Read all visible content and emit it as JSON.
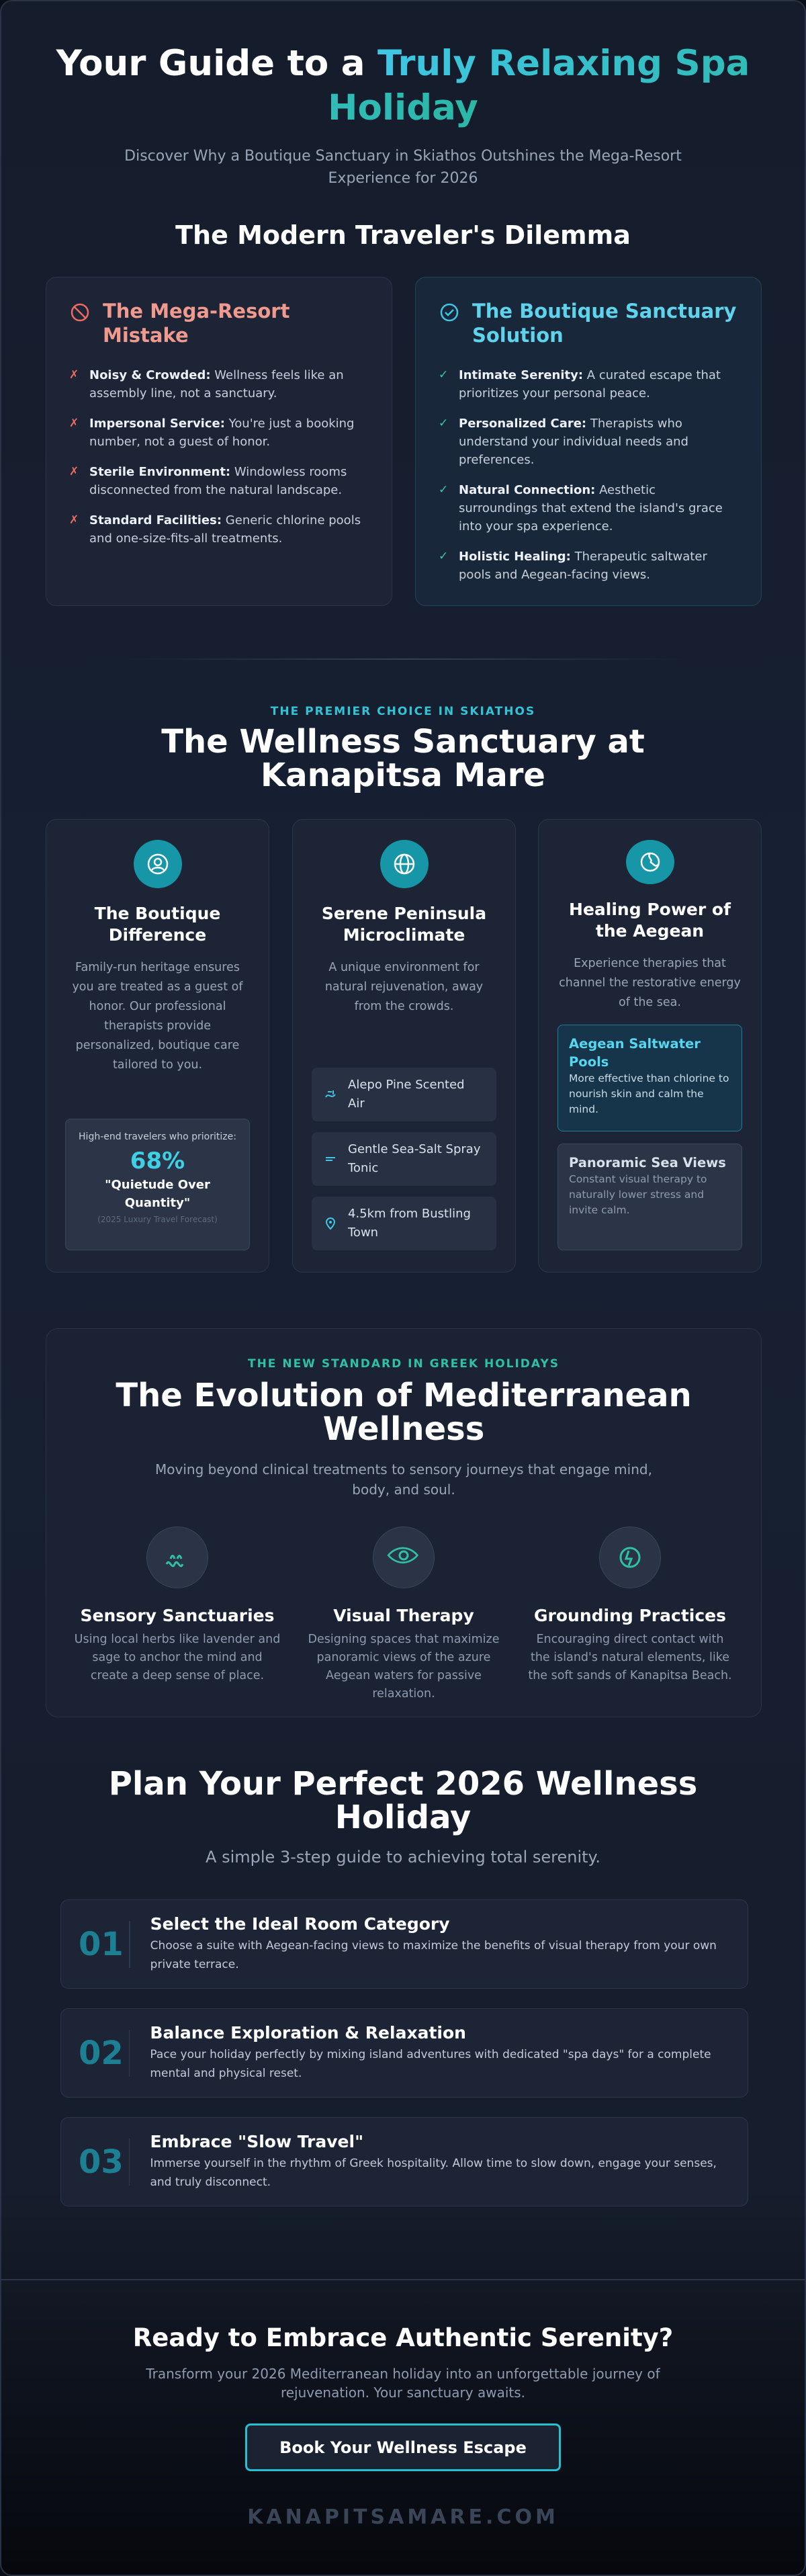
{
  "header": {
    "title_lead": "Your Guide to a",
    "title_highlight": "Truly Relaxing Spa Holiday",
    "subtitle": "Discover Why a Boutique Sanctuary in Skiathos Outshines the Mega-Resort Experience for 2026"
  },
  "dilemma": {
    "title": "The Modern Traveler's Dilemma",
    "cards": [
      {
        "title": "The Mega-Resort Mistake",
        "items": [
          {
            "label": "Noisy & Crowded:",
            "text": "Wellness feels like an assembly line, not a sanctuary."
          },
          {
            "label": "Impersonal Service:",
            "text": "You're just a booking number, not a guest of honor."
          },
          {
            "label": "Sterile Environment:",
            "text": "Windowless rooms disconnected from the natural landscape."
          },
          {
            "label": "Standard Facilities:",
            "text": "Generic chlorine pools and one-size-fits-all treatments."
          }
        ]
      },
      {
        "title": "The Boutique Sanctuary Solution",
        "items": [
          {
            "label": "Intimate Serenity:",
            "text": "A curated escape that prioritizes your personal peace."
          },
          {
            "label": "Personalized Care:",
            "text": "Therapists who understand your individual needs and preferences."
          },
          {
            "label": "Natural Connection:",
            "text": "Aesthetic surroundings that extend the island's grace into your spa experience."
          },
          {
            "label": "Holistic Healing:",
            "text": "Therapeutic saltwater pools and Aegean-facing views."
          }
        ]
      }
    ]
  },
  "sanctuary": {
    "eyebrow": "THE PREMIER CHOICE IN SKIATHOS",
    "title": "The Wellness Sanctuary at Kanapitsa Mare",
    "cards": [
      {
        "title": "The Boutique Difference",
        "text": "Family-run heritage ensures you are treated as a guest of honor. Our professional therapists provide personalized, boutique care tailored to you.",
        "stat": {
          "caption": "High-end travelers who prioritize:",
          "value": "68%",
          "quote": "\"Quietude Over Quantity\"",
          "source": "(2025 Luxury Travel Forecast)"
        }
      },
      {
        "title": "Serene Peninsula Microclimate",
        "text": "A unique environment for natural rejuvenation, away from the crowds.",
        "features": [
          "Alepo Pine Scented Air",
          "Gentle Sea-Salt Spray Tonic",
          "4.5km from Bustling Town"
        ]
      },
      {
        "title": "Healing Power of the Aegean",
        "text": "Experience therapies that channel the restorative energy of the sea.",
        "highlights": [
          {
            "title": "Aegean Saltwater Pools",
            "text": "More effective than chlorine to nourish skin and calm the mind."
          },
          {
            "title": "Panoramic Sea Views",
            "text": "Constant visual therapy to naturally lower stress and invite calm."
          }
        ]
      }
    ]
  },
  "evolution": {
    "eyebrow": "THE NEW STANDARD IN GREEK HOLIDAYS",
    "title": "The Evolution of Mediterranean Wellness",
    "subtitle": "Moving beyond clinical treatments to sensory journeys that engage mind, body, and soul.",
    "pillars": [
      {
        "title": "Sensory Sanctuaries",
        "text": "Using local herbs like lavender and sage to anchor the mind and create a deep sense of place."
      },
      {
        "title": "Visual Therapy",
        "text": "Designing spaces that maximize panoramic views of the azure Aegean waters for passive relaxation."
      },
      {
        "title": "Grounding Practices",
        "text": "Encouraging direct contact with the island's natural elements, like the soft sands of Kanapitsa Beach."
      }
    ]
  },
  "plan": {
    "title": "Plan Your Perfect 2026 Wellness Holiday",
    "subtitle": "A simple 3-step guide to achieving total serenity.",
    "steps": [
      {
        "number": "01",
        "title": "Select the Ideal Room Category",
        "text": "Choose a suite with Aegean-facing views to maximize the benefits of visual therapy from your own private terrace."
      },
      {
        "number": "02",
        "title": "Balance Exploration & Relaxation",
        "text": "Pace your holiday perfectly by mixing island adventures with dedicated \"spa days\" for a complete mental and physical reset."
      },
      {
        "number": "03",
        "title": "Embrace \"Slow Travel\"",
        "text": "Immerse yourself in the rhythm of Greek hospitality. Allow time to slow down, engage your senses, and truly disconnect."
      }
    ]
  },
  "cta": {
    "title": "Ready to Embrace Authentic Serenity?",
    "text": "Transform your 2026 Mediterranean holiday into an unforgettable journey of rejuvenation. Your sanctuary awaits.",
    "button": "Book Your Wellness Escape"
  },
  "footer": {
    "brand": "KANAPITSAMARE.COM"
  }
}
